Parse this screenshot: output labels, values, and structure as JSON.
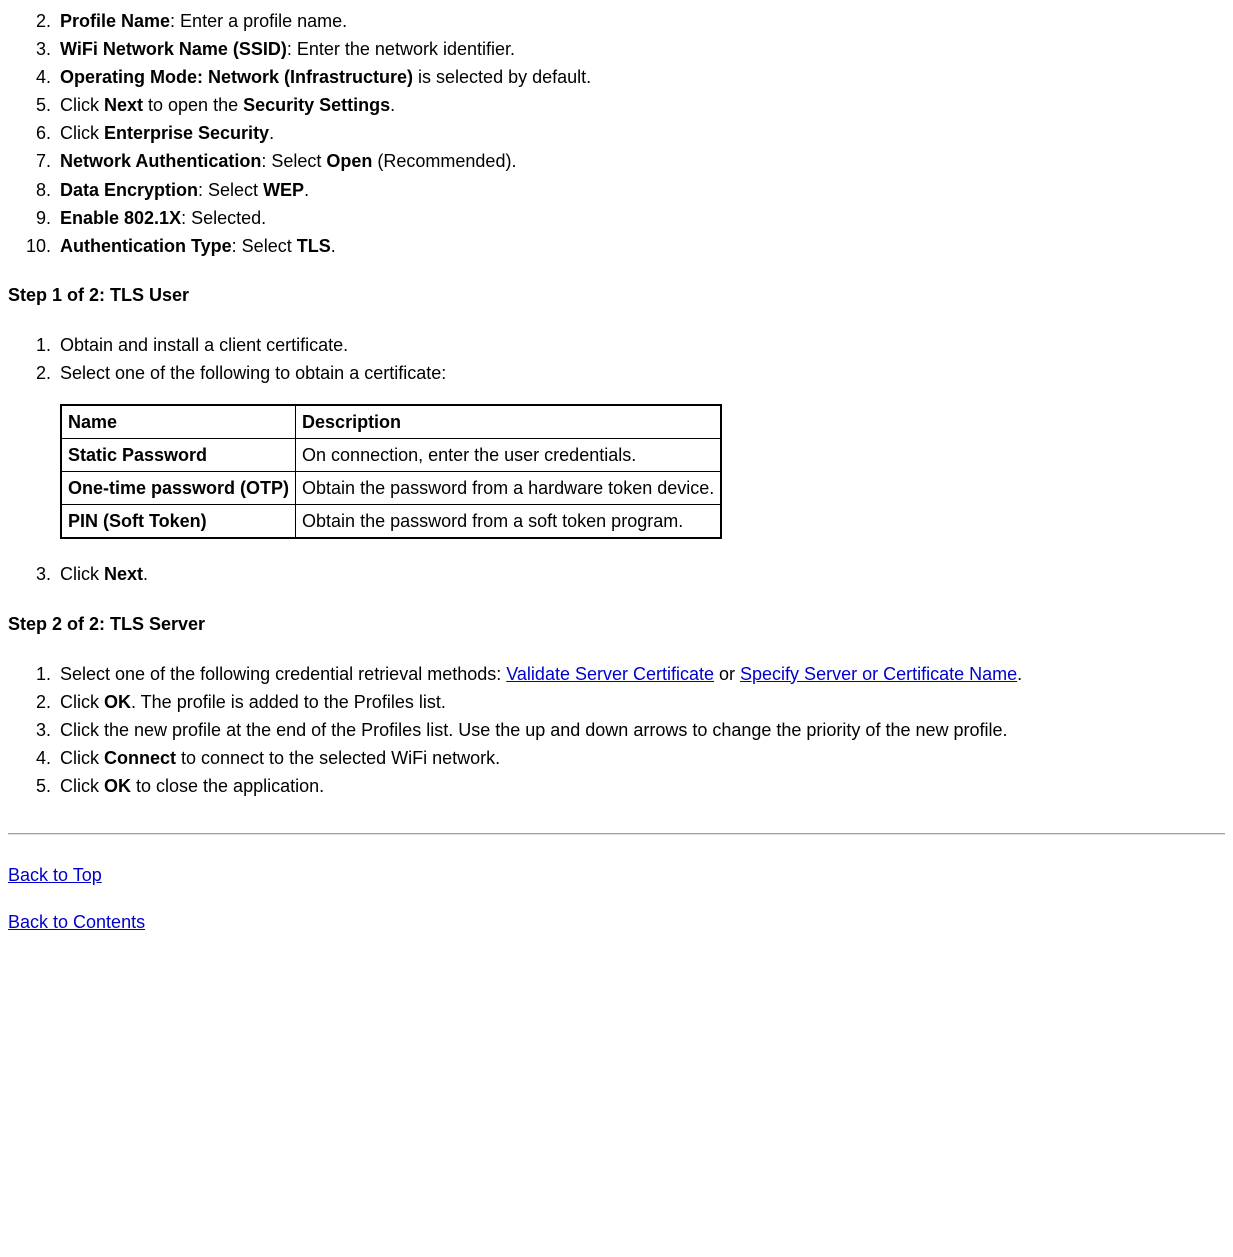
{
  "list1": {
    "start": 2,
    "items": [
      {
        "b1": "Profile Name",
        "rest": ": Enter a profile name."
      },
      {
        "b1": "WiFi Network Name (SSID)",
        "rest": ": Enter the network identifier."
      },
      {
        "b1": "Operating Mode: Network (Infrastructure)",
        "rest": " is selected by default."
      },
      {
        "pre": "Click ",
        "b1": "Next",
        "mid": " to open the ",
        "b2": "Security Settings",
        "post": "."
      },
      {
        "pre": "Click ",
        "b1": "Enterprise Security",
        "post": "."
      },
      {
        "b1": "Network Authentication",
        "mid": ": Select ",
        "b2": "Open",
        "post": " (Recommended)."
      },
      {
        "b1": "Data Encryption",
        "mid": ": Select ",
        "b2": "WEP",
        "post": "."
      },
      {
        "b1": "Enable 802.1X",
        "rest": ": Selected."
      },
      {
        "b1": "Authentication Type",
        "mid": ": Select ",
        "b2": "TLS",
        "post": "."
      }
    ]
  },
  "step1": {
    "heading": "Step 1 of 2: TLS User",
    "items_a": [
      "Obtain and install a client certificate.",
      "Select one of the following to obtain a certificate:"
    ],
    "table": {
      "columns": [
        "Name",
        "Description"
      ],
      "rows": [
        [
          "Static Password",
          "On connection, enter the user credentials."
        ],
        [
          "One-time password (OTP)",
          "Obtain the password from a hardware token device."
        ],
        [
          "PIN (Soft Token)",
          "Obtain the password from a soft token program."
        ]
      ],
      "border_color": "#000000",
      "font_size": 18
    },
    "item3": {
      "pre": "Click ",
      "b1": "Next",
      "post": "."
    }
  },
  "step2": {
    "heading": "Step 2 of 2: TLS Server",
    "items": [
      {
        "pre": "Select one of the following credential retrieval methods: ",
        "link1": "Validate Server Certificate",
        "mid": " or ",
        "link2": "Specify Server or Certificate Name",
        "post": "."
      },
      {
        "pre": "Click ",
        "b1": "OK",
        "post": ". The profile is added to the Profiles list."
      },
      {
        "plain": "Click the new profile at the end of the Profiles list. Use the up and down arrows to change the priority of the new profile."
      },
      {
        "pre": "Click ",
        "b1": "Connect",
        "post": " to connect to the selected WiFi network."
      },
      {
        "pre": "Click ",
        "b1": "OK",
        "post": " to close the application."
      }
    ]
  },
  "footer": {
    "back_top": "Back to Top",
    "back_contents": "Back to Contents"
  },
  "link_color": "#0000cc"
}
